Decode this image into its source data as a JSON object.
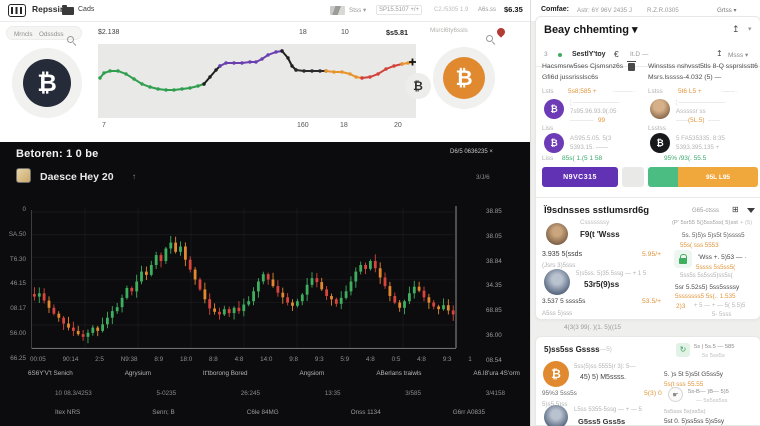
{
  "colors": {
    "accent_purple": "#6232b4",
    "accent_green": "#4cbd82",
    "accent_orange": "#f0a73c",
    "bitcoin_orange": "#e0892f",
    "candle_up": "#3fae5f",
    "candle_down": "#d8453c",
    "candle_down_alt": "#e2892f",
    "dark_bg": "#0c0c0e"
  },
  "topbar": {
    "brand": "Repssir",
    "folder_label": "Cads",
    "flag_dd": "Stss ▾",
    "stat1": "SP15.5107 +/+",
    "stat2": "C2./5305 1.9",
    "stat3": "A6s.ss",
    "price": "$6.35"
  },
  "subnav": {
    "link1": "Mrncls",
    "link2": "Odssdss",
    "search_placeholder": "Msrcl6ty6ssls"
  },
  "dark_panel": {
    "title": "Betoren: 1 0 be",
    "subtitle": "Daesce Hey 20",
    "arrow": "↑",
    "corner": "D6/5 0636235  ×",
    "corner_sub": "3/J/6",
    "footer1": [
      "6S6Y'V't Senich",
      "Agrysium",
      "It'tborong Bored",
      "Angsiorn",
      "ABerlans traiwls",
      "A6.I8'ura 4S'orm"
    ],
    "footer2": [
      "10 08.3/4253",
      "5-0235",
      "26:245",
      "13:35",
      "3/585",
      "3/4158"
    ],
    "footer3": [
      "Itex NRS",
      "Senn; B",
      "C6le 84MG",
      "Onss 1134",
      "G6rr A0835"
    ]
  },
  "right_panel": {
    "topbar": {
      "title": "Comfae:",
      "subtitle": "Astr: 6Y 96V 2435 J",
      "code": "R.Z.R.0305",
      "orders": "Grtss ▾"
    },
    "header": {
      "title": "Beay chhemting ▾",
      "share": "↥",
      "caret": "▾"
    },
    "toolbar": {
      "num": "3",
      "name": "SestlY'toy",
      "euro": "€",
      "range": "It.D  —",
      "share": "↥",
      "more": "Msss ▾"
    },
    "left": {
      "t1": "Hacsmsrw5ses Cjsmsnz6s",
      "t2": "Gfi6d jussrisslsc6s",
      "lbl": "Lsts",
      "val": "5s8;585 +",
      "dash": "· ——— ·",
      "r1_dash": "¦ ————————",
      "r1_sub": "7s95.96.93.9(.05",
      "r1_tail_pre": "————",
      "r1_tail": "99",
      "lbl2": "Liss",
      "r2_sub": "AS95.5.05. 5(3",
      "r2_tail": "5393.15. ——",
      "lbl3": "Liss",
      "total": "85s( 1.(5 1 58",
      "btn": "N9VC315"
    },
    "right": {
      "t1": "Winsstss nshvsst5tls 8-Q ssprslsstt6ng",
      "t2": "Msrs.lsssss-4.032 (5) —",
      "lbl": "Lstss",
      "val": "5t6 L5 +",
      "dash": "· —— ·",
      "r1_dash": "¦ ————————",
      "r1_sub": "Asssssr ss",
      "r1_tail_pre": "——",
      "r1_tail": "(5L.5)",
      "r1_tail_post": "——",
      "lbl2": "Lsstss",
      "r2_sub": "5 FA535335. 8:35",
      "r2_tail": "5393.395.135 +",
      "total": "95% /93(. 55.5",
      "btn": "95L L95"
    },
    "section2": {
      "title": "Ï9sdnsses sstlumsrd6g",
      "right": "G65-ctsss",
      "li1_over": "Csssssssy",
      "li1_name": "F9(t 'Wsss",
      "li1_line": "3.935 5(ssds",
      "li1_sub": "(Jsrs 3)5sss",
      "li1_val": "5.95/+",
      "li2_over": "5)s5ss. 5)35 5ssg — + 1 5",
      "li2_name": "53r5(9)ss",
      "li2_line": "3.537 5 ssss5s",
      "li2_sub": "A5ss 5)sss",
      "li2_val": "53.5/+",
      "rt_head": "(P' 5sr55 5()5ss5ss( 5)sst",
      "rt_head_tail": "+ (5)",
      "rt_line": "5s. 5)5)s 5)s5t 5)ssss5",
      "rt_val": "55s( sss 5553",
      "lock_line": "'Wss +. 5)53  — ·",
      "lock_val": "5ssss 5s5ss5(",
      "rb_over": "5ss5s 5s5ss5)ss5s(",
      "rb_line": "5sr 5.52s5) 5ss5ssssy",
      "rb_val": "5sssssss5 5s(.. 1.535",
      "badge": "2)3",
      "rb_side": "+ 5 — + — 5( 5.5)5",
      "rb_side2": "5- 5sss"
    },
    "band": "4(3(3  99(. )(1. 5)((15",
    "card2": {
      "title": "5)ss5ss Gssss",
      "sub": "—5)",
      "ric_line1": "5s | 5s.5 — 585",
      "ric_line2": "5s 5ss5s",
      "btc_over": "5ss(5)ss 5555(r 3): 5—",
      "btc_name": "45) 5) M5ssss.",
      "r1": "5. )s 5t 5)s5t G5ss5y",
      "r1_val": "5s(t sss 55.55",
      "l1": "95%3 5ss5s",
      "l1_val": "5(3) 0",
      "l2": "5)s5 5)ss",
      "hand_line": "5s-B— )B— 5)5",
      "hand_sub": "— 5s5ss5ss",
      "r2_over": "5s5sss 5s(ss5s)",
      "r2_line": "5st 0. 5)ss5ss 5)s5sy",
      "av_over": "L5ss 5355-5ssg — + — 5",
      "av_name": "G5ss5 Gss5s"
    }
  },
  "chart_data": [
    {
      "type": "line",
      "title": "BTC mini trend",
      "price_label": "$2.138",
      "labels_top": [
        "18",
        "10"
      ],
      "price_right": "$s5.81",
      "labels_bottom": [
        "7",
        "160",
        "18",
        "20"
      ],
      "end_marker": {
        "x": 314,
        "y": 18,
        "color": "#141414"
      },
      "segments": [
        {
          "color": "#2f9e4f",
          "points": [
            [
              2,
              34
            ],
            [
              6,
              29
            ],
            [
              12,
              27
            ],
            [
              20,
              27
            ],
            [
              28,
              30
            ],
            [
              36,
              35
            ],
            [
              44,
              40
            ],
            [
              52,
              43
            ],
            [
              60,
              45
            ],
            [
              68,
              46
            ],
            [
              76,
              46
            ],
            [
              84,
              45
            ],
            [
              92,
              44
            ],
            [
              100,
              42
            ],
            [
              106,
              40
            ]
          ]
        },
        {
          "color": "#1f1f1f",
          "points": [
            [
              106,
              40
            ],
            [
              112,
              33
            ],
            [
              118,
              26
            ],
            [
              122,
              22
            ]
          ]
        },
        {
          "color": "#6a3fb0",
          "points": [
            [
              122,
              22
            ],
            [
              128,
              19
            ],
            [
              136,
              19
            ],
            [
              144,
              19
            ],
            [
              152,
              18
            ],
            [
              158,
              18
            ],
            [
              164,
              15
            ],
            [
              170,
              11
            ],
            [
              178,
              8
            ],
            [
              184,
              7
            ]
          ]
        },
        {
          "color": "#1f1f1f",
          "points": [
            [
              184,
              7
            ],
            [
              190,
              14
            ],
            [
              194,
              22
            ],
            [
              198,
              26
            ]
          ]
        },
        {
          "color": "#2b2b2b",
          "points": [
            [
              198,
              26
            ],
            [
              206,
              27
            ],
            [
              214,
              27
            ],
            [
              222,
              27
            ],
            [
              228,
              27
            ]
          ]
        },
        {
          "color": "#e8942c",
          "points": [
            [
              228,
              27
            ],
            [
              236,
              28
            ],
            [
              244,
              28
            ],
            [
              252,
              30
            ],
            [
              258,
              33
            ],
            [
              264,
              34
            ]
          ]
        },
        {
          "color": "#d2413a",
          "points": [
            [
              264,
              34
            ],
            [
              272,
              33
            ],
            [
              280,
              30
            ],
            [
              288,
              25
            ],
            [
              296,
              22
            ],
            [
              304,
              20
            ]
          ]
        },
        {
          "color": "#e8942c",
          "points": [
            [
              304,
              20
            ],
            [
              310,
              19
            ],
            [
              314,
              18
            ]
          ]
        }
      ]
    },
    {
      "type": "candlestick",
      "title": "Betoren intraday",
      "ylim": [
        47,
        64
      ],
      "up_color": "#3fae5f",
      "down_color": "#d8453c",
      "down_alt_color": "#e2892f",
      "y_left_labels": [
        "0",
        "SA.50",
        "T6.30",
        "46.15",
        "08.17",
        "S6.00",
        "66.25"
      ],
      "y_right_labels": [
        "38.85",
        "38.05",
        "38.84",
        "34.35",
        "68.85",
        "36.00",
        "08.54"
      ],
      "x_labels": [
        "00:05",
        "90:14",
        "2:5",
        "N9:38",
        "8:9",
        "18:0",
        "8:8",
        "4:8",
        "14:0",
        "9:8",
        "9:3",
        "5:9",
        "4:8",
        "0:5",
        "4:8",
        "9:3",
        "1"
      ],
      "close": [
        55.2,
        54.8,
        55.3,
        54.2,
        53.1,
        52.2,
        51.6,
        50.7,
        50.1,
        49.6,
        49.1,
        48.7,
        49.3,
        50.1,
        49.6,
        50.6,
        51.6,
        52.6,
        53.2,
        54.6,
        56.1,
        55.6,
        57.1,
        58.6,
        58.1,
        59.6,
        61.1,
        60.2,
        62.1,
        63.0,
        61.6,
        62.4,
        60.4,
        58.9,
        57.4,
        55.9,
        54.4,
        53.0,
        52.5,
        52.1,
        52.9,
        52.3,
        53.1,
        52.6,
        53.6,
        54.1,
        55.6,
        57.1,
        58.2,
        57.4,
        56.4,
        55.4,
        54.7,
        53.9,
        53.4,
        54.1,
        55.1,
        56.6,
        57.6,
        57.0,
        55.9,
        54.9,
        54.4,
        53.7,
        54.6,
        55.6,
        57.1,
        58.6,
        59.6,
        59.0,
        60.2,
        59.1,
        57.7,
        56.4,
        54.9,
        53.9,
        53.1,
        54.1,
        55.3,
        56.3,
        55.7,
        54.7,
        53.9,
        53.3,
        52.9,
        53.5,
        52.7,
        52.1
      ]
    }
  ]
}
